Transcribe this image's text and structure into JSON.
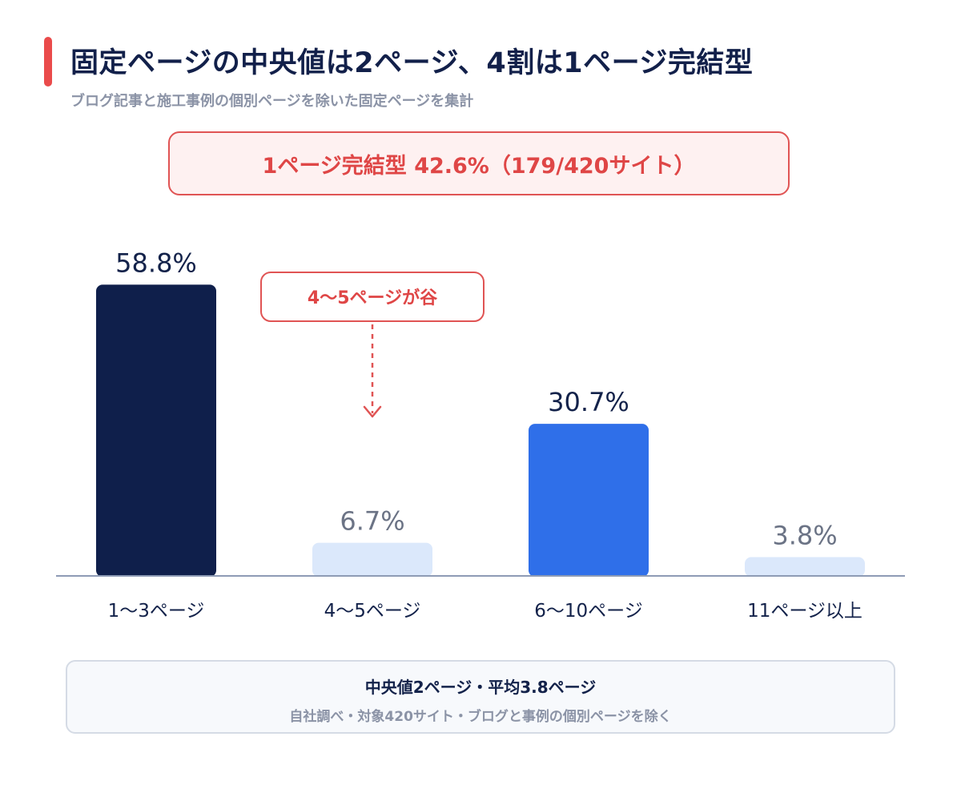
{
  "header": {
    "title": "固定ページの中央値は2ページ、4割は1ページ完結型",
    "subtitle": "ブログ記事と施工事例の個別ページを除いた固定ページを集計"
  },
  "highlight": {
    "text": "1ページ完結型 42.6%（179/420サイト）"
  },
  "callout": {
    "text": "4〜5ページが谷"
  },
  "footer_note": {
    "main": "中央値2ページ・平均3.8ページ",
    "sub": "自社調べ・対象420サイト・ブログと事例の個別ページを除く"
  },
  "colors": {
    "accent_red": "#e05454",
    "navy": "#0f1f4b",
    "blue": "#2f6fe9",
    "light_blue": "#dbe8fb",
    "axis": "#8e9bb5",
    "gray_text": "#6b7385"
  },
  "chart_data": {
    "type": "bar",
    "categories": [
      "1〜3ページ",
      "4〜5ページ",
      "6〜10ページ",
      "11ページ以上"
    ],
    "values": [
      58.8,
      6.7,
      30.7,
      3.8
    ],
    "value_labels": [
      "58.8%",
      "6.7%",
      "30.7%",
      "3.8%"
    ],
    "bar_colors": [
      "#0f1f4b",
      "#dbe8fb",
      "#2f6fe9",
      "#dbe8fb"
    ],
    "value_label_colors": [
      "#13224a",
      "#6b7385",
      "#13224a",
      "#6b7385"
    ],
    "unit": "%",
    "ylim": [
      0,
      60
    ],
    "grid": false,
    "legend": "none"
  }
}
